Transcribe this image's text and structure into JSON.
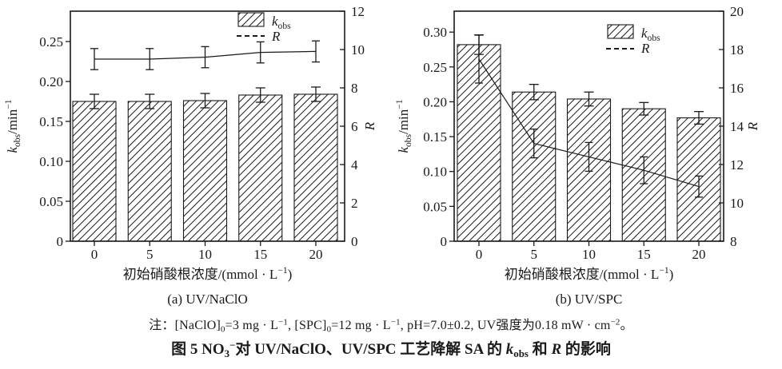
{
  "colors": {
    "ink": "#1a1a1a",
    "background": "#ffffff"
  },
  "note_segments": [
    {
      "t": "注：[NaClO]",
      "s": "n"
    },
    {
      "t": "0",
      "s": "sub"
    },
    {
      "t": "=3 mg · L",
      "s": "n"
    },
    {
      "t": "−1",
      "s": "sup"
    },
    {
      "t": ", [SPC]",
      "s": "n"
    },
    {
      "t": "0",
      "s": "sub"
    },
    {
      "t": "=12 mg · L",
      "s": "n"
    },
    {
      "t": "−1",
      "s": "sup"
    },
    {
      "t": ", pH=7.0±0.2, UV强度为0.18 mW · cm",
      "s": "n"
    },
    {
      "t": "−2",
      "s": "sup"
    },
    {
      "t": "。",
      "s": "n"
    }
  ],
  "caption_segments": [
    {
      "t": "图 5  NO",
      "s": "n"
    },
    {
      "t": "3",
      "s": "sub"
    },
    {
      "t": "−",
      "s": "sup"
    },
    {
      "t": "对 UV/NaClO、UV/SPC 工艺降解 SA 的 ",
      "s": "n"
    },
    {
      "t": "k",
      "s": "i"
    },
    {
      "t": "obs",
      "s": "sub"
    },
    {
      "t": " 和 ",
      "s": "n"
    },
    {
      "t": "R",
      "s": "i"
    },
    {
      "t": " 的影响",
      "s": "n"
    }
  ],
  "chart_data": [
    {
      "type": "bar",
      "subtype": "bar+line dual-axis",
      "panel_label": "(a) UV/NaClO",
      "categories": [
        "0",
        "5",
        "10",
        "15",
        "20"
      ],
      "xlabel_segments": [
        {
          "t": "初始硝酸根浓度/(mmol · L",
          "s": "n"
        },
        {
          "t": "−1",
          "s": "sup"
        },
        {
          "t": ")",
          "s": "n"
        }
      ],
      "left_axis": {
        "label_segments": [
          {
            "t": "k",
            "s": "i"
          },
          {
            "t": "obs",
            "s": "sub"
          },
          {
            "t": "/min",
            "s": "n"
          },
          {
            "t": "−1",
            "s": "sup"
          }
        ],
        "min": 0,
        "max": 0.288,
        "tick_values": [
          0,
          0.05,
          0.1,
          0.15,
          0.2,
          0.25
        ],
        "tick_labels": [
          "0",
          "0.05",
          "0.10",
          "0.15",
          "0.20",
          "0.25"
        ]
      },
      "right_axis": {
        "label_segments": [
          {
            "t": "R",
            "s": "i"
          }
        ],
        "min": 0,
        "max": 12,
        "tick_values": [
          0,
          2,
          4,
          6,
          8,
          10,
          12
        ],
        "tick_labels": [
          "0",
          "2",
          "4",
          "6",
          "8",
          "10",
          "12"
        ]
      },
      "bar_series": {
        "name_segments": [
          {
            "t": "k",
            "s": "i"
          },
          {
            "t": "obs",
            "s": "sub"
          }
        ],
        "values": [
          0.175,
          0.175,
          0.176,
          0.183,
          0.184
        ],
        "errors": [
          0.009,
          0.009,
          0.009,
          0.009,
          0.009
        ],
        "hatch": "diagonal-forward"
      },
      "line_series": {
        "name_segments": [
          {
            "t": "R",
            "s": "i"
          }
        ],
        "values": [
          9.5,
          9.5,
          9.6,
          9.85,
          9.9
        ],
        "errors": [
          0.55,
          0.55,
          0.55,
          0.55,
          0.55
        ],
        "line_style": "solid-thin, dashed legend key"
      },
      "grid": "off",
      "legend_position": "top-right-inside"
    },
    {
      "type": "bar",
      "subtype": "bar+line dual-axis",
      "panel_label": "(b) UV/SPC",
      "categories": [
        "0",
        "5",
        "10",
        "15",
        "20"
      ],
      "xlabel_segments": [
        {
          "t": "初始硝酸根浓度/(mmol · L",
          "s": "n"
        },
        {
          "t": "−1",
          "s": "sup"
        },
        {
          "t": ")",
          "s": "n"
        }
      ],
      "left_axis": {
        "label_segments": [
          {
            "t": "k",
            "s": "i"
          },
          {
            "t": "obs",
            "s": "sub"
          },
          {
            "t": "/min",
            "s": "n"
          },
          {
            "t": "−1",
            "s": "sup"
          }
        ],
        "min": 0,
        "max": 0.33,
        "tick_values": [
          0,
          0.05,
          0.1,
          0.15,
          0.2,
          0.25,
          0.3
        ],
        "tick_labels": [
          "0",
          "0.05",
          "0.10",
          "0.15",
          "0.20",
          "0.25",
          "0.30"
        ]
      },
      "right_axis": {
        "label_segments": [
          {
            "t": "R",
            "s": "i"
          }
        ],
        "min": 8,
        "max": 20,
        "tick_values": [
          8,
          10,
          12,
          14,
          16,
          18,
          20
        ],
        "tick_labels": [
          "8",
          "10",
          "12",
          "14",
          "16",
          "18",
          "20"
        ]
      },
      "bar_series": {
        "name_segments": [
          {
            "t": "k",
            "s": "i"
          },
          {
            "t": "obs",
            "s": "sub"
          }
        ],
        "values": [
          0.282,
          0.214,
          0.204,
          0.19,
          0.177
        ],
        "errors": [
          0.014,
          0.011,
          0.01,
          0.009,
          0.009
        ],
        "hatch": "diagonal-forward"
      },
      "line_series": {
        "name_segments": [
          {
            "t": "R",
            "s": "i"
          }
        ],
        "values": [
          17.5,
          13.1,
          12.4,
          11.7,
          10.85
        ],
        "errors": [
          1.25,
          0.75,
          0.75,
          0.7,
          0.55
        ],
        "line_style": "solid-thin, dashed legend key"
      },
      "grid": "off",
      "legend_position": "top-right-inside"
    }
  ]
}
